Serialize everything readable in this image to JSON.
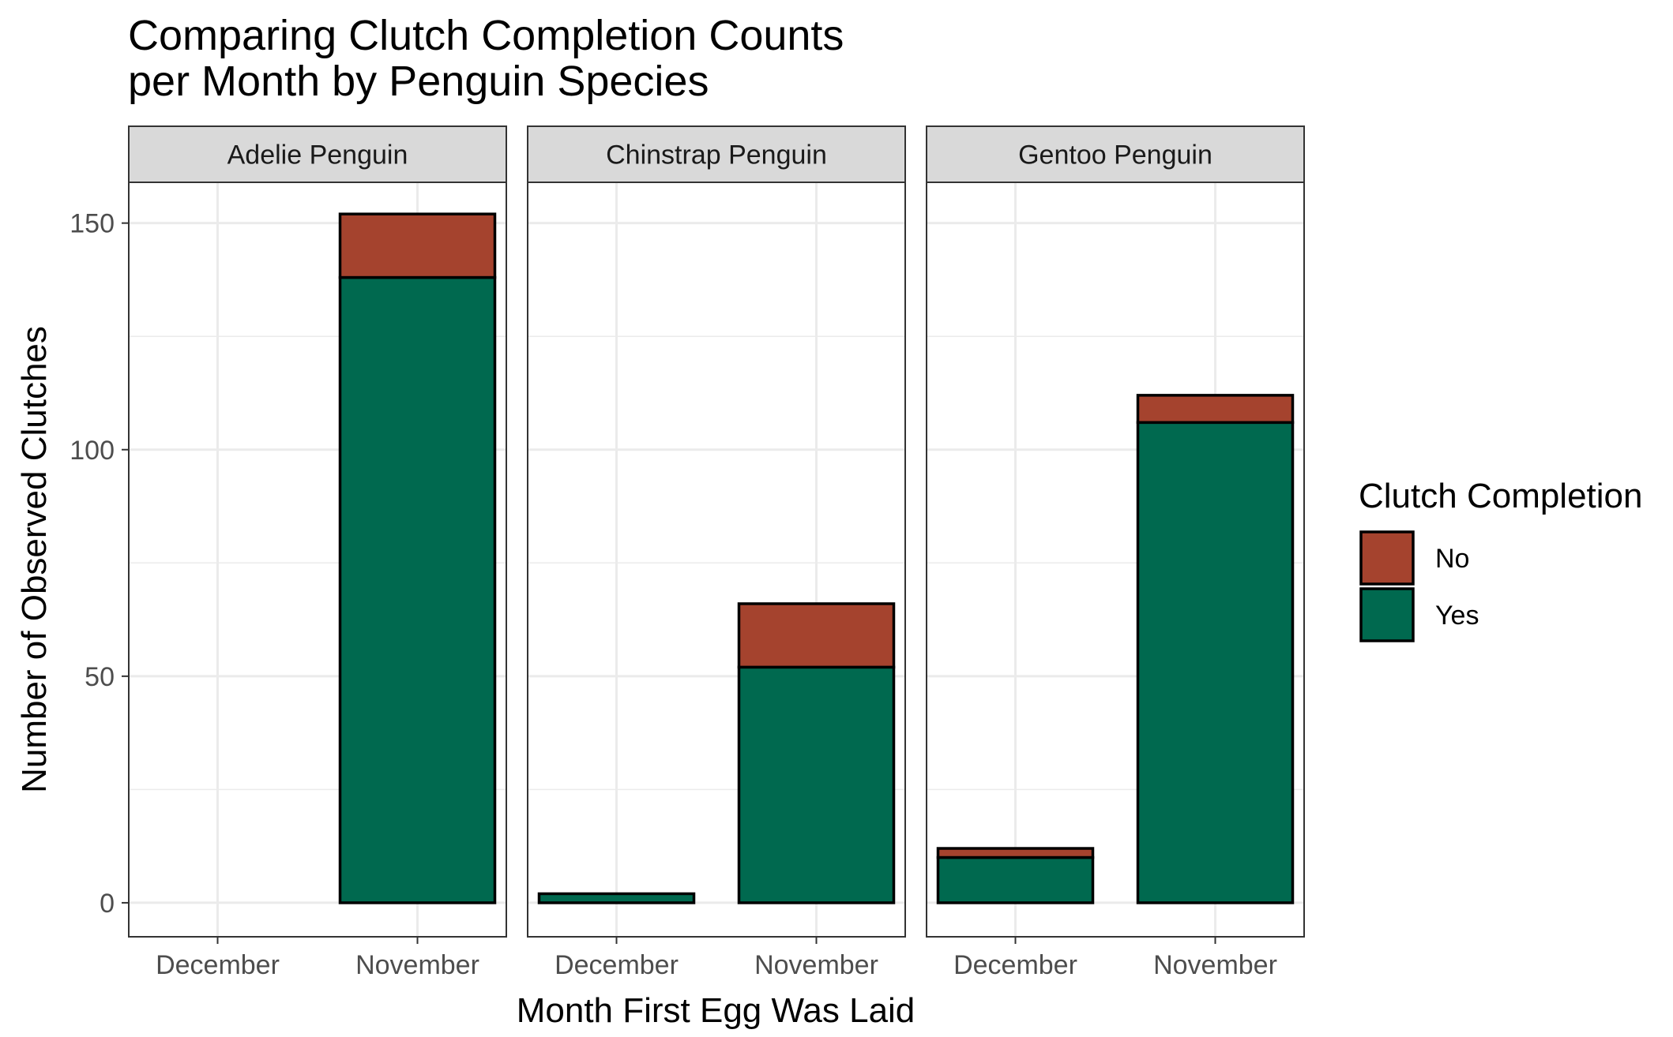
{
  "chart_data": {
    "type": "bar",
    "stacked": true,
    "title": "Comparing Clutch Completion Counts\nper Month by Penguin Species",
    "xlabel": "Month First Egg Was Laid",
    "ylabel": "Number of Observed Clutches",
    "ylim": [
      -7.5,
      159
    ],
    "y_ticks": [
      0,
      50,
      100,
      150
    ],
    "categories": [
      "December",
      "November"
    ],
    "grid": true,
    "facets": [
      {
        "label": "Adelie Penguin",
        "series": [
          {
            "name": "No",
            "values": [
              0,
              14
            ]
          },
          {
            "name": "Yes",
            "values": [
              0,
              138
            ]
          }
        ]
      },
      {
        "label": "Chinstrap Penguin",
        "series": [
          {
            "name": "No",
            "values": [
              0,
              14
            ]
          },
          {
            "name": "Yes",
            "values": [
              2,
              52
            ]
          }
        ]
      },
      {
        "label": "Gentoo Penguin",
        "series": [
          {
            "name": "No",
            "values": [
              2,
              6
            ]
          },
          {
            "name": "Yes",
            "values": [
              10,
              106
            ]
          }
        ]
      }
    ],
    "legend": {
      "title": "Clutch Completion",
      "placement": "right",
      "items": [
        {
          "label": "No",
          "color": "#A5432E"
        },
        {
          "label": "Yes",
          "color": "#00694F"
        }
      ]
    }
  }
}
